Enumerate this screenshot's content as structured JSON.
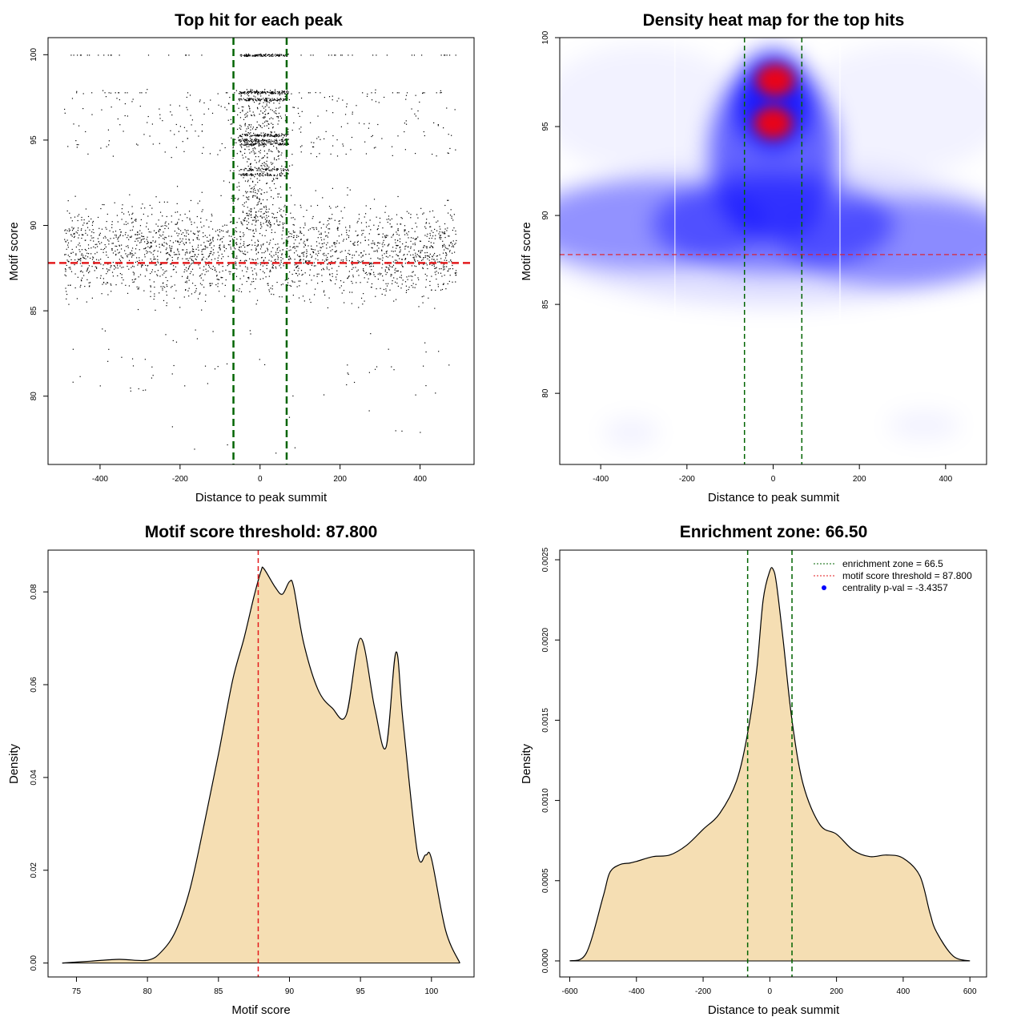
{
  "chart_data": [
    {
      "type": "scatter",
      "title": "Top hit for each peak",
      "xlabel": "Distance to peak summit",
      "ylabel": "Motif score",
      "xlim": [
        -530,
        535
      ],
      "ylim": [
        76,
        101
      ],
      "xticks": [
        "-400",
        "-200",
        "0",
        "200",
        "400"
      ],
      "yticks": [
        "80",
        "85",
        "90",
        "95",
        "100"
      ],
      "vlines": [
        -66.5,
        66.5
      ],
      "hline": 87.8,
      "colors": {
        "points": "#000000",
        "vlines": "#006400",
        "hline": "#e31a1c"
      }
    },
    {
      "type": "heatmap",
      "title": "Density heat map for the top hits",
      "xlabel": "Distance to peak summit",
      "ylabel": "Motif score",
      "xlim": [
        -495,
        495
      ],
      "ylim": [
        76,
        100
      ],
      "xticks": [
        "-400",
        "-200",
        "0",
        "200",
        "400"
      ],
      "yticks": [
        "80",
        "85",
        "90",
        "95",
        "100"
      ],
      "vlines": [
        -66.5,
        66.5
      ],
      "hline": 87.8,
      "hotspots": [
        {
          "x": 5,
          "y": 97.6,
          "level": "high"
        },
        {
          "x": 0,
          "y": 95.2,
          "level": "high"
        }
      ],
      "colors": {
        "low": "#ffffff",
        "mid": "#0000ff",
        "high": "#ff0000"
      }
    },
    {
      "type": "area",
      "title": "Motif score threshold: 87.800",
      "xlabel": "Motif score",
      "ylabel": "Density",
      "xlim": [
        73,
        103
      ],
      "ylim": [
        -0.003,
        0.089
      ],
      "xticks": [
        "75",
        "80",
        "85",
        "90",
        "95",
        "100"
      ],
      "yticks": [
        "0.00",
        "0.02",
        "0.04",
        "0.06",
        "0.08"
      ],
      "vline": 87.8,
      "x": [
        74,
        76,
        78,
        80,
        81,
        82,
        83,
        84,
        85,
        86,
        86.8,
        87.5,
        88,
        88.2,
        89,
        89.5,
        90,
        90.3,
        91,
        92,
        93,
        94,
        95,
        96,
        96.8,
        97.5,
        98,
        99,
        99.6,
        100,
        101,
        102
      ],
      "values": [
        0,
        0.0004,
        0.0008,
        0.0006,
        0.0025,
        0.007,
        0.016,
        0.03,
        0.045,
        0.061,
        0.07,
        0.079,
        0.0845,
        0.085,
        0.081,
        0.0795,
        0.0822,
        0.081,
        0.069,
        0.059,
        0.055,
        0.0535,
        0.07,
        0.055,
        0.0465,
        0.067,
        0.052,
        0.024,
        0.0233,
        0.0225,
        0.007,
        0
      ],
      "colors": {
        "fill": "#f5deb3",
        "line": "#000000",
        "vline": "#e31a1c"
      }
    },
    {
      "type": "area",
      "title": "Enrichment zone: 66.50",
      "xlabel": "Distance to peak summit",
      "ylabel": "Density",
      "xlim": [
        -630,
        650
      ],
      "ylim": [
        -0.0001,
        0.00256
      ],
      "xticks": [
        "-600",
        "-400",
        "-200",
        "0",
        "200",
        "400",
        "600"
      ],
      "yticks": [
        "0.0000",
        "0.0005",
        "0.0010",
        "0.0015",
        "0.0020",
        "0.0025"
      ],
      "vlines": [
        -66.5,
        66.5
      ],
      "x": [
        -600,
        -550,
        -500,
        -480,
        -450,
        -420,
        -400,
        -350,
        -300,
        -250,
        -200,
        -150,
        -100,
        -66.5,
        -40,
        -20,
        0,
        10,
        20,
        40,
        66.5,
        100,
        150,
        200,
        250,
        300,
        350,
        400,
        450,
        480,
        500,
        550,
        600
      ],
      "values": [
        0,
        5e-05,
        0.0004,
        0.00055,
        0.0006,
        0.00061,
        0.00062,
        0.00065,
        0.00066,
        0.00072,
        0.00082,
        0.00092,
        0.00112,
        0.00142,
        0.0018,
        0.00225,
        0.00243,
        0.00244,
        0.00235,
        0.002,
        0.0015,
        0.0011,
        0.00085,
        0.00079,
        0.00069,
        0.00065,
        0.00066,
        0.00064,
        0.00053,
        0.0003,
        0.00018,
        3e-05,
        0
      ],
      "legend": {
        "position": "top-right",
        "entries": [
          {
            "label": "enrichment zone = 66.5",
            "color": "#006400",
            "kind": "dotted"
          },
          {
            "label": "motif score threshold = 87.800",
            "color": "#e31a1c",
            "kind": "dotted"
          },
          {
            "label": "centrality p-val = -3.4357",
            "color": "#0000ff",
            "kind": "point"
          }
        ]
      },
      "colors": {
        "fill": "#f5deb3",
        "line": "#000000",
        "vline": "#006400"
      }
    }
  ]
}
